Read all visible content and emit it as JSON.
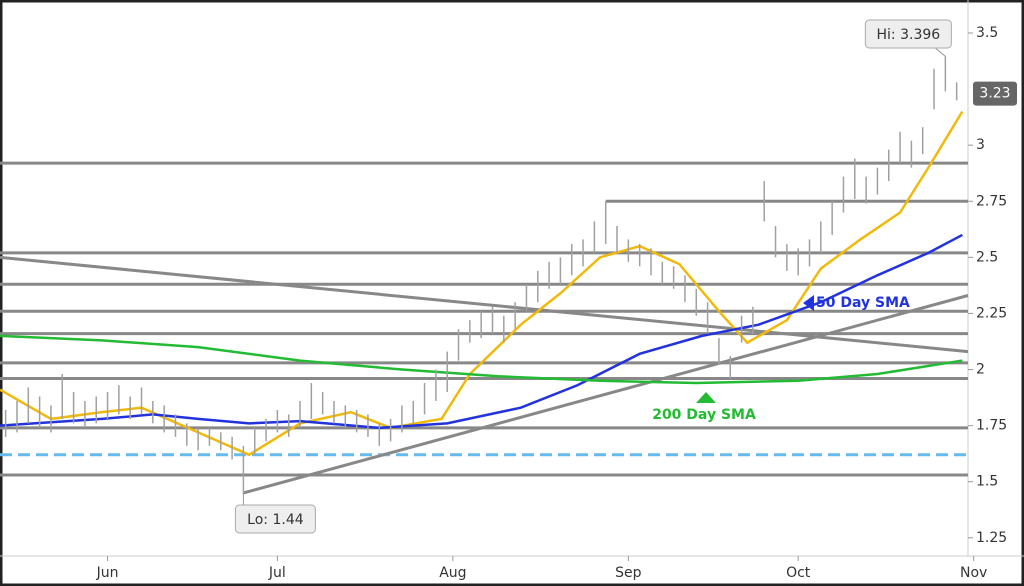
{
  "chart_data": {
    "type": "ohlc",
    "xlim": [
      133,
      304
    ],
    "ylim": [
      1.169,
      3.647
    ],
    "xticks": [
      {
        "value": 152,
        "label": "Jun"
      },
      {
        "value": 182,
        "label": "Jul"
      },
      {
        "value": 213,
        "label": "Aug"
      },
      {
        "value": 244,
        "label": "Sep"
      },
      {
        "value": 274,
        "label": "Oct"
      },
      {
        "value": 305,
        "label": "Nov"
      }
    ],
    "yticks": [
      1.25,
      1.5,
      1.75,
      2,
      2.25,
      2.5,
      2.75,
      3,
      3.5
    ],
    "bar_color": "#a0a0a0",
    "x": [
      134,
      136,
      138,
      140,
      142,
      144,
      146,
      148,
      150,
      152,
      154,
      156,
      158,
      160,
      162,
      164,
      166,
      168,
      170,
      172,
      174,
      176,
      178,
      180,
      182,
      184,
      186,
      188,
      190,
      192,
      194,
      196,
      198,
      200,
      202,
      204,
      206,
      208,
      210,
      212,
      214,
      216,
      218,
      220,
      222,
      224,
      226,
      228,
      230,
      232,
      234,
      236,
      238,
      240,
      242,
      244,
      246,
      248,
      250,
      252,
      254,
      256,
      258,
      260,
      262,
      264,
      266,
      268,
      270,
      272,
      274,
      276,
      278,
      280,
      282,
      284,
      286,
      288,
      290,
      292,
      294,
      296,
      298,
      300,
      302
    ],
    "low": [
      1.7,
      1.72,
      1.76,
      1.74,
      1.72,
      1.78,
      1.76,
      1.74,
      1.76,
      1.78,
      1.8,
      1.78,
      1.8,
      1.76,
      1.72,
      1.7,
      1.66,
      1.64,
      1.66,
      1.64,
      1.6,
      1.44,
      1.62,
      1.68,
      1.72,
      1.7,
      1.74,
      1.78,
      1.8,
      1.76,
      1.74,
      1.72,
      1.7,
      1.66,
      1.68,
      1.72,
      1.76,
      1.8,
      1.86,
      1.9,
      2.04,
      2.12,
      2.14,
      2.16,
      2.12,
      2.18,
      2.26,
      2.3,
      2.36,
      2.38,
      2.42,
      2.46,
      2.52,
      2.56,
      2.52,
      2.48,
      2.46,
      2.42,
      2.38,
      2.36,
      2.3,
      2.24,
      2.16,
      2.02,
      1.96,
      2.12,
      2.16,
      2.66,
      2.5,
      2.44,
      2.42,
      2.46,
      2.52,
      2.6,
      2.7,
      2.76,
      2.74,
      2.78,
      2.84,
      2.92,
      2.9,
      2.96,
      3.16,
      3.24,
      3.2
    ],
    "high": [
      1.82,
      1.86,
      1.92,
      1.88,
      1.84,
      1.98,
      1.9,
      1.86,
      1.88,
      1.9,
      1.93,
      1.88,
      1.92,
      1.86,
      1.84,
      1.8,
      1.76,
      1.74,
      1.74,
      1.72,
      1.7,
      1.66,
      1.74,
      1.78,
      1.82,
      1.8,
      1.86,
      1.94,
      1.9,
      1.86,
      1.84,
      1.82,
      1.8,
      1.76,
      1.78,
      1.84,
      1.86,
      1.94,
      2.0,
      2.08,
      2.18,
      2.22,
      2.26,
      2.28,
      2.24,
      2.3,
      2.38,
      2.44,
      2.48,
      2.5,
      2.56,
      2.58,
      2.66,
      2.75,
      2.64,
      2.58,
      2.56,
      2.54,
      2.48,
      2.46,
      2.42,
      2.36,
      2.3,
      2.14,
      2.06,
      2.24,
      2.28,
      2.84,
      2.64,
      2.56,
      2.54,
      2.58,
      2.66,
      2.75,
      2.86,
      2.94,
      2.86,
      2.9,
      2.98,
      3.06,
      3.02,
      3.08,
      3.34,
      3.396,
      3.28
    ],
    "series": [
      {
        "color": "#f0b90b",
        "x": [
          133,
          142,
          151,
          158,
          168,
          177,
          186,
          195,
          202,
          211,
          216,
          225,
          232,
          239,
          246,
          253,
          260,
          265,
          272,
          278,
          285,
          292,
          297,
          303
        ],
        "values": [
          1.91,
          1.78,
          1.81,
          1.83,
          1.72,
          1.62,
          1.76,
          1.81,
          1.74,
          1.78,
          1.98,
          2.2,
          2.34,
          2.5,
          2.55,
          2.47,
          2.26,
          2.12,
          2.22,
          2.45,
          2.58,
          2.7,
          2.9,
          3.15
        ]
      },
      {
        "color": "#2233dd",
        "x": [
          133,
          151,
          160,
          168,
          177,
          186,
          200,
          212,
          225,
          235,
          246,
          257,
          267,
          278,
          288,
          297,
          303
        ],
        "values": [
          1.75,
          1.78,
          1.8,
          1.78,
          1.76,
          1.77,
          1.74,
          1.76,
          1.83,
          1.93,
          2.07,
          2.15,
          2.2,
          2.3,
          2.42,
          2.52,
          2.6
        ]
      },
      {
        "color": "#22bb33",
        "x": [
          133,
          151,
          168,
          186,
          204,
          221,
          239,
          256,
          274,
          288,
          303
        ],
        "values": [
          2.15,
          2.13,
          2.1,
          2.04,
          2.0,
          1.97,
          1.95,
          1.94,
          1.95,
          1.98,
          2.04
        ]
      }
    ],
    "levels": [
      {
        "value": 2.92
      },
      {
        "value": 2.75,
        "from": 240
      },
      {
        "value": 2.52
      },
      {
        "value": 2.38
      },
      {
        "value": 2.26
      },
      {
        "value": 2.16
      },
      {
        "value": 2.03
      },
      {
        "value": 1.96
      },
      {
        "value": 1.74
      },
      {
        "value": 1.53
      }
    ],
    "support": {
      "value": 1.62,
      "color": "#66bbee"
    },
    "trendlines": [
      {
        "x": [
          133,
          304
        ],
        "values": [
          2.5,
          2.08
        ]
      },
      {
        "x": [
          176,
          304
        ],
        "values": [
          1.45,
          2.33
        ]
      }
    ],
    "hi_label": "Hi: 3.396",
    "lo_label": "Lo: 1.44",
    "last_price": 3.23,
    "sma50_label": "50 Day SMA",
    "sma200_label": "200 Day SMA"
  }
}
